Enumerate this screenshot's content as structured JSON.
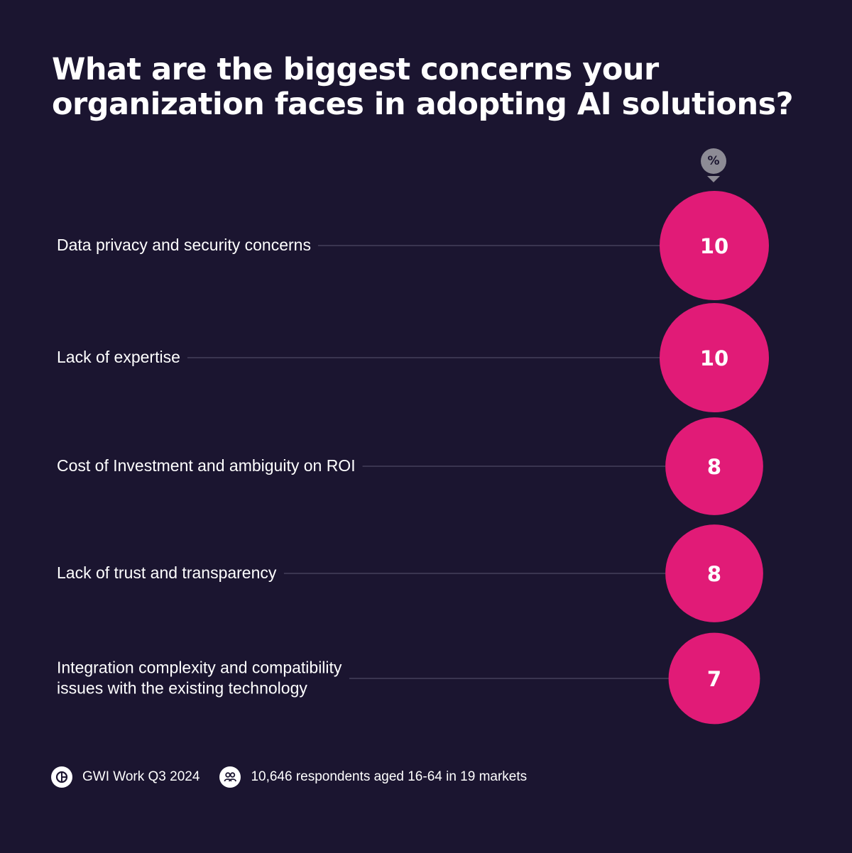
{
  "title": "What are the biggest concerns your organization faces in adopting AI solutions?",
  "unit_badge": "%",
  "colors": {
    "background": "#1b1530",
    "bubble": "#e11b77",
    "leader_line": "#3a3550",
    "badge": "#8d8b95"
  },
  "chart_data": {
    "type": "bubble",
    "unit": "%",
    "categories": [
      "Data privacy and security concerns",
      "Lack of expertise",
      "Cost of Investment and ambiguity on ROI",
      "Lack of trust and transparency",
      "Integration complexity and compatibility issues with the existing technology"
    ],
    "values": [
      10,
      10,
      8,
      8,
      7
    ]
  },
  "footer": {
    "source_icon": "gwi-logo-icon",
    "source": "GWI Work Q3 2024",
    "respondents_icon": "people-icon",
    "respondents": "10,646 respondents aged 16-64 in 19 markets"
  }
}
